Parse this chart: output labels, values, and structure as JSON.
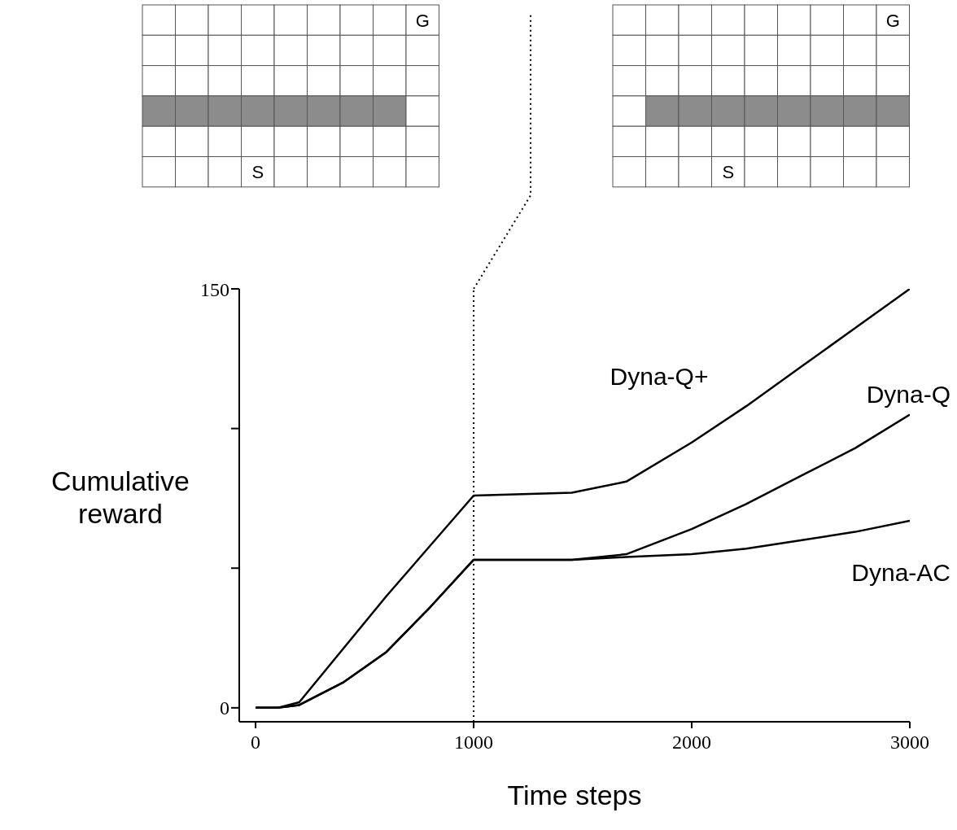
{
  "chart_data": {
    "type": "line",
    "xlabel": "Time steps",
    "ylabel": "Cumulative reward",
    "x": [
      0,
      100,
      200,
      400,
      600,
      800,
      1000,
      1450,
      1700,
      2000,
      2250,
      2500,
      2750,
      3000
    ],
    "series": [
      {
        "name": "Dyna-Q+",
        "color": "#000000",
        "values": [
          0,
          0,
          2,
          21,
          40,
          58,
          76,
          77,
          81,
          95,
          108,
          122,
          136,
          150
        ]
      },
      {
        "name": "Dyna-Q",
        "color": "#000000",
        "values": [
          0,
          0,
          1,
          9,
          20,
          36,
          53,
          53,
          55,
          64,
          73,
          83,
          93,
          105
        ]
      },
      {
        "name": "Dyna-AC",
        "color": "#000000",
        "values": [
          0,
          0,
          1,
          9,
          20,
          36,
          53,
          53,
          54,
          55,
          57,
          60,
          63,
          67
        ]
      }
    ],
    "xlim": [
      -75,
      3000
    ],
    "ylim": [
      -5,
      150
    ],
    "xticks": [
      0,
      1000,
      2000,
      3000
    ],
    "yticks": [
      0,
      {
        "value": 50,
        "label": null
      },
      {
        "value": 100,
        "label": null
      },
      150
    ],
    "ref_lines": [
      {
        "axis": "x",
        "value": 1000,
        "line_style": "dotted"
      }
    ],
    "annotations": [
      "G",
      "S",
      "G",
      "S"
    ],
    "grid": false,
    "legend": false,
    "marker": "none",
    "line_style": "solid"
  }
}
